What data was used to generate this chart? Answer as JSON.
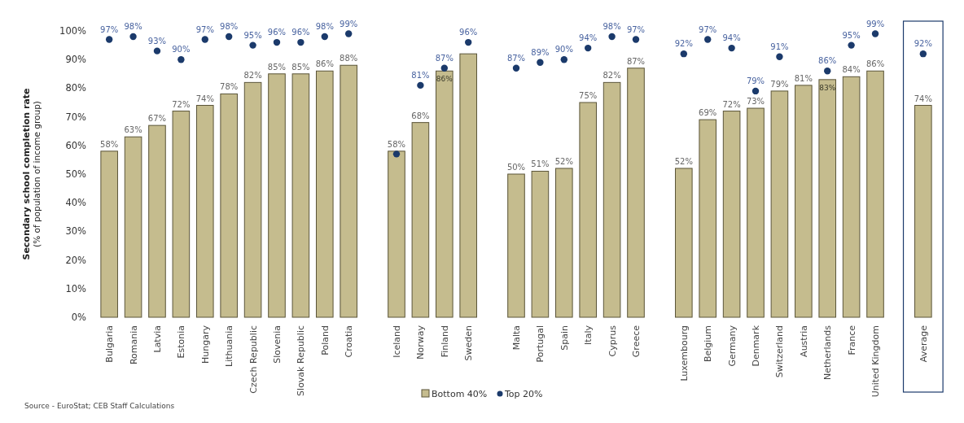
{
  "chart_data": {
    "type": "bar",
    "ylabel": "Secondary school completion rate\n(% of population of income group)",
    "categories": [
      "Bulgaria",
      "Romania",
      "Latvia",
      "Estonia",
      "Hungary",
      "Lithuania",
      "Czech Republic",
      "Slovenia",
      "Slovak Republic",
      "Poland",
      "Croatia",
      null,
      "Iceland",
      "Norway",
      "Finland",
      "Sweden",
      null,
      "Malta",
      "Portugal",
      "Spain",
      "Italy",
      "Cyprus",
      "Greece",
      null,
      "Luxembourg",
      "Belgium",
      "Germany",
      "Denmark",
      "Switzerland",
      "Austria",
      "Netherlands",
      "France",
      "United Kingdom",
      null,
      "Average"
    ],
    "series": [
      {
        "name": "Bottom 40%",
        "color": "#c5bc8e",
        "values": [
          58,
          63,
          67,
          72,
          74,
          78,
          82,
          85,
          85,
          86,
          88,
          null,
          58,
          68,
          86,
          92,
          null,
          50,
          51,
          52,
          75,
          82,
          87,
          null,
          52,
          69,
          72,
          73,
          79,
          81,
          83,
          84,
          86,
          null,
          74
        ],
        "value_labels": [
          "58%",
          "63%",
          "67%",
          "72%",
          "74%",
          "78%",
          "82%",
          "85%",
          "85%",
          "86%",
          "88%",
          null,
          "58%",
          "68%",
          "86%",
          null,
          null,
          "50%",
          "51%",
          "52%",
          "75%",
          "82%",
          "87%",
          null,
          "52%",
          "69%",
          "72%",
          "73%",
          "79%",
          "81%",
          "83%",
          "84%",
          "86%",
          null,
          "74%"
        ]
      },
      {
        "name": "Top 20%",
        "type": "scatter",
        "marker": "circle",
        "color": "#1b3a6b",
        "values": [
          97,
          98,
          93,
          90,
          97,
          98,
          95,
          96,
          96,
          98,
          99,
          null,
          57,
          81,
          87,
          96,
          null,
          87,
          89,
          90,
          94,
          98,
          97,
          null,
          92,
          97,
          94,
          79,
          91,
          null,
          86,
          95,
          99,
          null,
          92
        ],
        "value_labels": [
          "97%",
          "98%",
          "93%",
          "90%",
          "97%",
          "98%",
          "95%",
          "96%",
          "96%",
          "98%",
          "99%",
          null,
          null,
          "81%",
          "87%",
          "96%",
          null,
          "87%",
          "89%",
          "90%",
          "94%",
          "98%",
          "97%",
          null,
          "92%",
          "97%",
          "94%",
          "79%",
          "91%",
          null,
          "86%",
          "95%",
          "99%",
          null,
          "92%"
        ]
      }
    ],
    "ylim": [
      0,
      100
    ],
    "yticks": [
      {
        "value": 0,
        "label": "0%"
      },
      {
        "value": 10,
        "label": "10%"
      },
      {
        "value": 20,
        "label": "20%"
      },
      {
        "value": 30,
        "label": "30%"
      },
      {
        "value": 40,
        "label": "40%"
      },
      {
        "value": 50,
        "label": "50%"
      },
      {
        "value": 60,
        "label": "60%"
      },
      {
        "value": 70,
        "label": "70%"
      },
      {
        "value": 80,
        "label": "80%"
      },
      {
        "value": 90,
        "label": "90%"
      },
      {
        "value": 100,
        "label": "100%"
      }
    ],
    "legend": "bottom",
    "annotations": [
      "Source - EuroStat; CEB Staff Calculations"
    ]
  }
}
